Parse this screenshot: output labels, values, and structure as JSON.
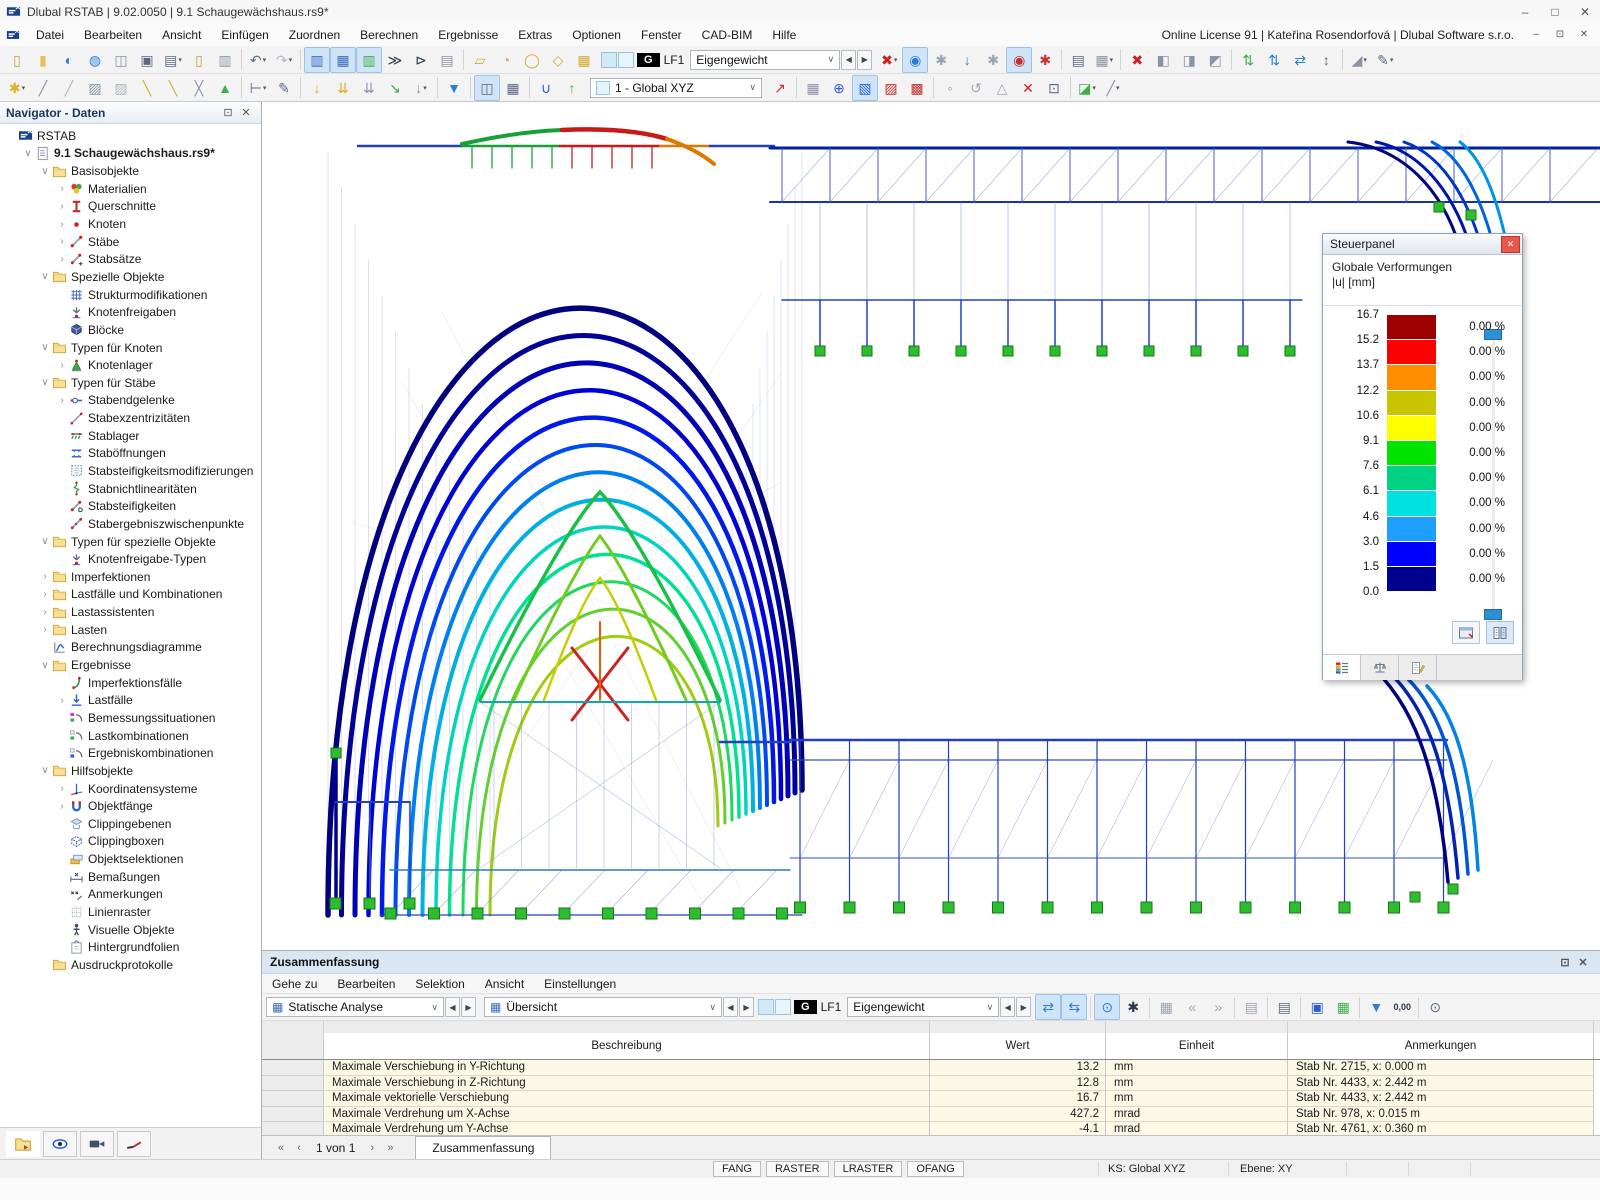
{
  "window": {
    "title": "Dlubal RSTAB | 9.02.0050 | 9.1 Schaugewächshaus.rs9*",
    "license": "Online License 91 | Kateřina Rosendorfová | Dlubal Software s.r.o."
  },
  "menu": [
    "Datei",
    "Bearbeiten",
    "Ansicht",
    "Einfügen",
    "Zuordnen",
    "Berechnen",
    "Ergebnisse",
    "Extras",
    "Optionen",
    "Fenster",
    "CAD-BIM",
    "Hilfe"
  ],
  "toolbar1": {
    "load_case": {
      "tag": "G",
      "id": "LF1",
      "name": "Eigengewicht"
    },
    "left_icons": [
      {
        "n": "new-model",
        "g": "▯",
        "c": "#c9a23f"
      },
      {
        "n": "open-model",
        "g": "▮",
        "c": "#e5c25a"
      },
      {
        "n": "dlubal-center",
        "g": "◐",
        "c": "#2a7fd4"
      },
      {
        "n": "web-model",
        "g": "◍",
        "c": "#2a7fd4"
      },
      {
        "n": "import-data",
        "g": "◫",
        "c": "#8a94a8"
      },
      {
        "n": "save",
        "g": "▣",
        "c": "#5a6a84"
      },
      {
        "n": "print",
        "g": "▤",
        "c": "#5a6a84",
        "dd": 1
      },
      {
        "n": "generate-model",
        "g": "▯",
        "c": "#c9a23f"
      },
      {
        "n": "copy-entry",
        "g": "▥",
        "c": "#8a94a8"
      },
      {
        "sep": 1
      },
      {
        "n": "undo",
        "g": "↶",
        "c": "#5a6a84",
        "dd": 1
      },
      {
        "n": "redo",
        "g": "↷",
        "c": "#b0b6c2",
        "dd": 1
      },
      {
        "sep": 1
      },
      {
        "n": "show-tables",
        "g": "▥",
        "c": "#3a6ac0",
        "hl": 1
      },
      {
        "n": "show-grid-tables",
        "g": "▦",
        "c": "#3a6ac0",
        "hl": 1
      },
      {
        "n": "show-result-tables",
        "g": "▥",
        "c": "#3fae49",
        "hl": 1
      },
      {
        "n": "console",
        "g": "≫",
        "c": "#2b3950"
      },
      {
        "n": "script-editor",
        "g": "⊳",
        "c": "#2b3950"
      },
      {
        "n": "table-settings",
        "g": "▤",
        "c": "#8a94a8"
      },
      {
        "sep": 1
      },
      {
        "n": "select-polygon",
        "g": "▱",
        "c": "#d8a92f"
      },
      {
        "n": "select-arc",
        "g": "◔",
        "c": "#d8a92f"
      },
      {
        "n": "select-circle",
        "g": "◯",
        "c": "#d8a92f"
      },
      {
        "n": "select-rhombus",
        "g": "◇",
        "c": "#d8a92f"
      },
      {
        "n": "select-window",
        "g": "▦",
        "c": "#d8a92f"
      }
    ],
    "right_icons": [
      {
        "n": "filter-off",
        "g": "✖",
        "c": "#d02020",
        "dd": 1
      },
      {
        "n": "view-members",
        "g": "◉",
        "c": "#2a7fd4",
        "hl": 1
      },
      {
        "n": "hide-numbering",
        "g": "✱",
        "c": "#9aa4b4"
      },
      {
        "n": "view-loads",
        "g": "↓",
        "c": "#2a7fd4"
      },
      {
        "n": "hide-load-values",
        "g": "✱",
        "c": "#9aa4b4"
      },
      {
        "n": "view-results",
        "g": "◉",
        "c": "#c23030",
        "hl": 1
      },
      {
        "n": "show-result-values",
        "g": "✱",
        "c": "#c23030"
      },
      {
        "sep": 1
      },
      {
        "n": "print-graphic",
        "g": "▤",
        "c": "#5a6a84"
      },
      {
        "n": "control-panel",
        "g": "▦",
        "c": "#8a94a8",
        "dd": 1
      },
      {
        "sep": 1
      },
      {
        "n": "stop-process",
        "g": "✖",
        "c": "#d02020"
      },
      {
        "n": "visibility-box-1",
        "g": "◧",
        "c": "#8a94a8"
      },
      {
        "n": "visibility-box-2",
        "g": "◨",
        "c": "#8a94a8"
      },
      {
        "n": "visibility-box-3",
        "g": "◩",
        "c": "#8a94a8"
      },
      {
        "sep": 1
      },
      {
        "n": "deform-x",
        "g": "⇅",
        "c": "#3fae49"
      },
      {
        "n": "deform-y",
        "g": "⇅",
        "c": "#2a7fd4"
      },
      {
        "n": "deform-z",
        "g": "⇄",
        "c": "#2a7fd4"
      },
      {
        "n": "deform-reset",
        "g": "↕",
        "c": "#5a6a84"
      },
      {
        "sep": 1
      },
      {
        "n": "ramp-display",
        "g": "◢",
        "c": "#8a94a8",
        "dd": 1
      },
      {
        "n": "edit-mode",
        "g": "✎",
        "c": "#5a6a84",
        "dd": 1
      }
    ]
  },
  "toolbar2": {
    "coord_system": "1 - Global XYZ",
    "left_icons": [
      {
        "n": "new-objects",
        "g": "✱",
        "c": "#e0b02a",
        "dd": 1
      },
      {
        "n": "new-member",
        "g": "╱",
        "c": "#8a94a8"
      },
      {
        "n": "new-member-set",
        "g": "╱",
        "c": "#b0b6c2"
      },
      {
        "n": "member-on-grid",
        "g": "▨",
        "c": "#8a94a8"
      },
      {
        "n": "member-on-grid-2",
        "g": "▨",
        "c": "#b0b6c2"
      },
      {
        "n": "assign-hinges",
        "g": "╲",
        "c": "#d8a92f"
      },
      {
        "n": "assign-eccentricity",
        "g": "╲",
        "c": "#d8a92f"
      },
      {
        "n": "divide-member",
        "g": "╳",
        "c": "#8a94a8"
      },
      {
        "n": "new-nodal-support",
        "g": "▲",
        "c": "#3fae49"
      },
      {
        "sep": 1
      },
      {
        "n": "dimensions",
        "g": "⊢",
        "c": "#5a6a84",
        "dd": 1
      },
      {
        "n": "annotations",
        "g": "✎",
        "c": "#5a6a84"
      },
      {
        "sep": 1
      },
      {
        "n": "nodal-load",
        "g": "↓",
        "c": "#d8a92f"
      },
      {
        "n": "member-load",
        "g": "⇊",
        "c": "#d8a92f"
      },
      {
        "n": "load-on-members",
        "g": "⇊",
        "c": "#8a94a8"
      },
      {
        "n": "imperfection",
        "g": "↘",
        "c": "#3fae49"
      },
      {
        "n": "load-generator",
        "g": "↓",
        "c": "#8a94a8",
        "dd": 1
      },
      {
        "sep": 1
      },
      {
        "n": "result-filter",
        "g": "▼",
        "c": "#2a7fd4"
      },
      {
        "sep": 1
      },
      {
        "n": "clipping-plane",
        "g": "◫",
        "c": "#5a6a84",
        "hl": 1
      },
      {
        "n": "clipping-animation",
        "g": "▦",
        "c": "#5a6a84"
      },
      {
        "sep": 1
      },
      {
        "n": "result-diagram",
        "g": "∪",
        "c": "#2a5fd4"
      },
      {
        "n": "result-vectors",
        "g": "↑",
        "c": "#3fae49"
      }
    ],
    "right_icons": [
      {
        "n": "workplane-origin",
        "g": "↗",
        "c": "#c23030"
      },
      {
        "sep": 1
      },
      {
        "n": "grid-points",
        "g": "▦",
        "c": "#8a94a8"
      },
      {
        "n": "snap-crosshair",
        "g": "⊕",
        "c": "#2a5fd4"
      },
      {
        "n": "workplane-xy",
        "g": "▧",
        "c": "#2a5fd4",
        "hl": 1
      },
      {
        "n": "workplane-yz",
        "g": "▨",
        "c": "#c23030"
      },
      {
        "n": "workplane-xz",
        "g": "▩",
        "c": "#c23030"
      },
      {
        "sep": 1
      },
      {
        "n": "snap-options",
        "g": "◦",
        "c": "#8a94a8"
      },
      {
        "n": "rotate-workplane",
        "g": "↺",
        "c": "#9aa4b4"
      },
      {
        "n": "mirror-workplane",
        "g": "△",
        "c": "#9aa4b4"
      },
      {
        "n": "delete-workplane",
        "g": "✕",
        "c": "#d02020"
      },
      {
        "n": "workplane-settings",
        "g": "⊡",
        "c": "#5a6a84"
      },
      {
        "sep": 1
      },
      {
        "n": "display-properties",
        "g": "◪",
        "c": "#3fae49",
        "dd": 1
      },
      {
        "n": "member-axes",
        "g": "╱",
        "c": "#8a94a8",
        "dd": 1
      }
    ]
  },
  "navigator": {
    "title": "Navigator - Daten",
    "tree": [
      {
        "l": "RSTAB",
        "lv": 0,
        "ic": "app",
        "ex": ""
      },
      {
        "l": "9.1 Schaugewächshaus.rs9*",
        "lv": 1,
        "ic": "doc",
        "ex": "v",
        "b": 1
      },
      {
        "l": "Basisobjekte",
        "lv": 2,
        "ic": "folder",
        "ex": "v"
      },
      {
        "l": "Materialien",
        "lv": 3,
        "ic": "mat",
        "ex": ">"
      },
      {
        "l": "Querschnitte",
        "lv": 3,
        "ic": "section",
        "ex": ">"
      },
      {
        "l": "Knoten",
        "lv": 3,
        "ic": "node",
        "ex": ">"
      },
      {
        "l": "Stäbe",
        "lv": 3,
        "ic": "member",
        "ex": ">"
      },
      {
        "l": "Stabsätze",
        "lv": 3,
        "ic": "memberplus",
        "ex": ">"
      },
      {
        "l": "Spezielle Objekte",
        "lv": 2,
        "ic": "folder",
        "ex": "v"
      },
      {
        "l": "Strukturmodifikationen",
        "lv": 3,
        "ic": "grid",
        "ex": ""
      },
      {
        "l": "Knotenfreigaben",
        "lv": 3,
        "ic": "release",
        "ex": ""
      },
      {
        "l": "Blöcke",
        "lv": 3,
        "ic": "block",
        "ex": ""
      },
      {
        "l": "Typen für Knoten",
        "lv": 2,
        "ic": "folder",
        "ex": "v"
      },
      {
        "l": "Knotenlager",
        "lv": 3,
        "ic": "support",
        "ex": ">"
      },
      {
        "l": "Typen für Stäbe",
        "lv": 2,
        "ic": "folder",
        "ex": "v"
      },
      {
        "l": "Stabendgelenke",
        "lv": 3,
        "ic": "hinge",
        "ex": ">"
      },
      {
        "l": "Stabexzentrizitäten",
        "lv": 3,
        "ic": "ecc",
        "ex": ""
      },
      {
        "l": "Stablager",
        "lv": 3,
        "ic": "beamsup",
        "ex": ""
      },
      {
        "l": "Staböffnungen",
        "lv": 3,
        "ic": "opening",
        "ex": ""
      },
      {
        "l": "Stabsteifigkeitsmodifizierungen",
        "lv": 3,
        "ic": "stiffmod",
        "ex": ""
      },
      {
        "l": "Stabnichtlinearitäten",
        "lv": 3,
        "ic": "nonlin",
        "ex": ""
      },
      {
        "l": "Stabsteifigkeiten",
        "lv": 3,
        "ic": "stiffD",
        "ex": ""
      },
      {
        "l": "Stabergebniszwischenpunkte",
        "lv": 3,
        "ic": "midpts",
        "ex": ""
      },
      {
        "l": "Typen für spezielle Objekte",
        "lv": 2,
        "ic": "folder",
        "ex": "v"
      },
      {
        "l": "Knotenfreigabe-Typen",
        "lv": 3,
        "ic": "release",
        "ex": ""
      },
      {
        "l": "Imperfektionen",
        "lv": 2,
        "ic": "folder",
        "ex": ">"
      },
      {
        "l": "Lastfälle und Kombinationen",
        "lv": 2,
        "ic": "folder",
        "ex": ">"
      },
      {
        "l": "Lastassistenten",
        "lv": 2,
        "ic": "folder",
        "ex": ">"
      },
      {
        "l": "Lasten",
        "lv": 2,
        "ic": "folder",
        "ex": ">"
      },
      {
        "l": "Berechnungsdiagramme",
        "lv": 2,
        "ic": "chart",
        "ex": ""
      },
      {
        "l": "Ergebnisse",
        "lv": 2,
        "ic": "folder",
        "ex": "v"
      },
      {
        "l": "Imperfektionsfälle",
        "lv": 3,
        "ic": "impcase",
        "ex": ""
      },
      {
        "l": "Lastfälle",
        "lv": 3,
        "ic": "lf",
        "ex": ">"
      },
      {
        "l": "Bemessungssituationen",
        "lv": 3,
        "ic": "design",
        "ex": ""
      },
      {
        "l": "Lastkombinationen",
        "lv": 3,
        "ic": "combo2",
        "ex": ""
      },
      {
        "l": "Ergebniskombinationen",
        "lv": 3,
        "ic": "combo3",
        "ex": ""
      },
      {
        "l": "Hilfsobjekte",
        "lv": 2,
        "ic": "folder",
        "ex": "v"
      },
      {
        "l": "Koordinatensysteme",
        "lv": 3,
        "ic": "coord",
        "ex": ">"
      },
      {
        "l": "Objektfänge",
        "lv": 3,
        "ic": "magnet",
        "ex": ">"
      },
      {
        "l": "Clippingebenen",
        "lv": 3,
        "ic": "clipplane",
        "ex": ""
      },
      {
        "l": "Clippingboxen",
        "lv": 3,
        "ic": "clipbox",
        "ex": ""
      },
      {
        "l": "Objektselektionen",
        "lv": 3,
        "ic": "selection",
        "ex": ""
      },
      {
        "l": "Bemaßungen",
        "lv": 3,
        "ic": "dim",
        "ex": ""
      },
      {
        "l": "Anmerkungen",
        "lv": 3,
        "ic": "annot",
        "ex": ""
      },
      {
        "l": "Linienraster",
        "lv": 3,
        "ic": "lgrid",
        "ex": ""
      },
      {
        "l": "Visuelle Objekte",
        "lv": 3,
        "ic": "visual",
        "ex": ""
      },
      {
        "l": "Hintergrundfolien",
        "lv": 3,
        "ic": "bg",
        "ex": ""
      },
      {
        "l": "Ausdruckprotokolle",
        "lv": 2,
        "ic": "folder",
        "ex": ""
      }
    ]
  },
  "steuerpanel": {
    "title": "Steuerpanel",
    "section": "Globale Verformungen",
    "unit": "|u| [mm]",
    "scale_labels": [
      "16.7",
      "15.2",
      "13.7",
      "12.2",
      "10.6",
      "9.1",
      "7.6",
      "6.1",
      "4.6",
      "3.0",
      "1.5",
      "0.0"
    ],
    "scale_colors": [
      "#9e0000",
      "#fe0000",
      "#fe8e00",
      "#c9c400",
      "#ffff00",
      "#00e400",
      "#00d284",
      "#00e2e2",
      "#1e9efe",
      "#0000fe",
      "#00008e"
    ],
    "percent": "0.00 %"
  },
  "summary": {
    "title": "Zusammenfassung",
    "menu": [
      "Gehe zu",
      "Bearbeiten",
      "Selektion",
      "Ansicht",
      "Einstellungen"
    ],
    "analysis": "Statische Analyse",
    "view": "Übersicht",
    "load_case": {
      "tag": "G",
      "id": "LF1",
      "name": "Eigengewicht"
    },
    "icons": [
      {
        "n": "sync-selection",
        "g": "⇄",
        "c": "#2a7fd4",
        "hl": 1
      },
      {
        "n": "sync-views",
        "g": "⇆",
        "c": "#2a7fd4",
        "hl": 1
      },
      {
        "sep": 1
      },
      {
        "n": "result-lookup",
        "g": "⊙",
        "c": "#2a7fd4",
        "hl": 1
      },
      {
        "n": "show-extremes",
        "g": "✱",
        "c": "#2b3950"
      },
      {
        "sep": 1
      },
      {
        "n": "column-filter",
        "g": "▦",
        "c": "#9aa4b4"
      },
      {
        "n": "goto-previous",
        "g": "«",
        "c": "#9aa4b4"
      },
      {
        "n": "goto-next",
        "g": "»",
        "c": "#9aa4b4"
      },
      {
        "sep": 1
      },
      {
        "n": "row-settings",
        "g": "▤",
        "c": "#9aa4b4"
      },
      {
        "sep": 1
      },
      {
        "n": "print-table",
        "g": "▤",
        "c": "#5a6a84"
      },
      {
        "sep": 1
      },
      {
        "n": "export-table",
        "g": "▣",
        "c": "#2a5fd4"
      },
      {
        "n": "excel-export",
        "g": "▦",
        "c": "#3fae49"
      },
      {
        "sep": 1
      },
      {
        "n": "relation-filter",
        "g": "▼",
        "c": "#2a7fd4"
      },
      {
        "n": "zero-values-toggle",
        "g": "0,00",
        "c": "#2b3950",
        "txt": 1
      },
      {
        "sep": 1
      },
      {
        "n": "search",
        "g": "⊙",
        "c": "#5a6a84"
      }
    ],
    "table": {
      "headers": [
        "Beschreibung",
        "Wert",
        "Einheit",
        "Anmerkungen"
      ],
      "rows": [
        [
          "Maximale Verschiebung in Y-Richtung",
          "13.2",
          "mm",
          "Stab Nr. 2715, x: 0.000 m"
        ],
        [
          "Maximale Verschiebung in Z-Richtung",
          "12.8",
          "mm",
          "Stab Nr. 4433, x: 2.442 m"
        ],
        [
          "Maximale vektorielle Verschiebung",
          "16.7",
          "mm",
          "Stab Nr. 4433, x: 2.442 m"
        ],
        [
          "Maximale Verdrehung um X-Achse",
          "427.2",
          "mrad",
          "Stab Nr. 978, x: 0.015 m"
        ],
        [
          "Maximale Verdrehung um Y-Achse",
          "-4.1",
          "mrad",
          "Stab Nr. 4761, x: 0.360 m"
        ]
      ]
    },
    "pagination": {
      "first": "«",
      "prev": "‹",
      "label": "1 von 1",
      "next": "›",
      "last": "»"
    },
    "tab": "Zusammenfassung"
  },
  "statusbar": {
    "buttons": [
      "FANG",
      "RASTER",
      "LRASTER",
      "OFANG"
    ],
    "ks": "KS: Global XYZ",
    "ebene": "Ebene: XY"
  }
}
